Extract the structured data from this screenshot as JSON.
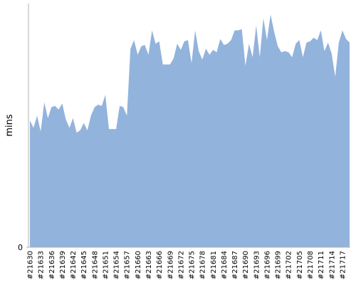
{
  "chart_data": {
    "type": "area",
    "y_label": "mins",
    "color": "#92b3dc",
    "categories": [
      "#21630",
      null,
      null,
      "#21633",
      null,
      null,
      "#21636",
      null,
      null,
      "#21639",
      null,
      null,
      "#21642",
      null,
      null,
      "#21645",
      null,
      null,
      "#21648",
      null,
      null,
      "#21651",
      null,
      null,
      "#21654",
      null,
      null,
      "#21657",
      null,
      null,
      "#21660",
      null,
      null,
      "#21663",
      null,
      null,
      "#21666",
      null,
      null,
      "#21669",
      null,
      null,
      "#21672",
      null,
      null,
      "#21675",
      null,
      null,
      "#21678",
      null,
      null,
      "#21681",
      null,
      null,
      "#21684",
      null,
      null,
      "#21687",
      null,
      null,
      "#21690",
      null,
      null,
      "#21693",
      null,
      null,
      "#21696",
      null,
      null,
      "#21699",
      null,
      null,
      "#21702",
      null,
      null,
      "#21705",
      null,
      null,
      "#21708",
      null,
      null,
      "#21711",
      null,
      null,
      "#21714",
      null,
      null,
      "#21717",
      null,
      null
    ],
    "values": [
      10.4,
      9.8,
      10.8,
      9.5,
      11.9,
      10.6,
      11.5,
      11.6,
      11.3,
      11.8,
      10.5,
      9.8,
      10.6,
      9.4,
      9.6,
      10.2,
      9.6,
      10.8,
      11.5,
      11.7,
      11.6,
      12.5,
      9.7,
      9.7,
      9.7,
      11.6,
      11.5,
      10.8,
      16.3,
      17.0,
      15.8,
      16.5,
      16.6,
      15.8,
      17.8,
      16.7,
      16.9,
      15.0,
      15.0,
      15.0,
      15.5,
      16.7,
      16.2,
      16.9,
      17.0,
      15.1,
      17.8,
      16.1,
      15.4,
      16.3,
      15.8,
      16.2,
      16.0,
      17.1,
      16.6,
      16.7,
      17.0,
      17.8,
      17.8,
      17.9,
      14.9,
      16.7,
      15.6,
      18.2,
      15.6,
      18.8,
      17.0,
      19.1,
      17.7,
      16.5,
      16.0,
      16.1,
      16.0,
      15.6,
      16.7,
      17.0,
      15.6,
      16.8,
      16.9,
      17.2,
      17.0,
      17.8,
      16.1,
      16.8,
      15.9,
      14.0,
      16.8,
      17.8,
      17.1,
      16.8
    ],
    "ylim": [
      0,
      20
    ],
    "yticks": [
      0
    ]
  }
}
